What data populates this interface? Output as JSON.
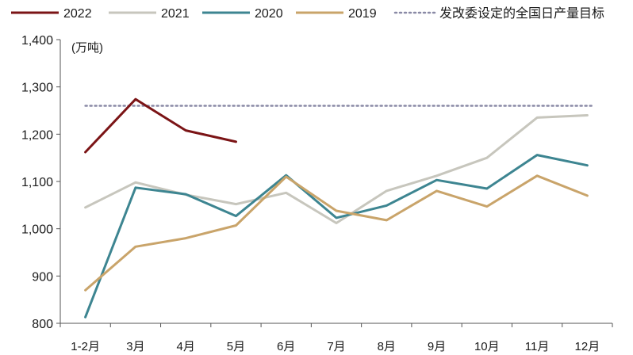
{
  "chart_data": {
    "type": "line",
    "unit_label": "(万吨)",
    "categories": [
      "1-2月",
      "3月",
      "4月",
      "5月",
      "6月",
      "7月",
      "8月",
      "9月",
      "10月",
      "11月",
      "12月"
    ],
    "ylim": [
      800,
      1400
    ],
    "yticks": [
      800,
      900,
      1000,
      1100,
      1200,
      1300,
      1400
    ],
    "ytick_labels": [
      "800",
      "900",
      "1,000",
      "1,100",
      "1,200",
      "1,300",
      "1,400"
    ],
    "series": [
      {
        "name": "2022",
        "color": "#7b1416",
        "values": [
          1162,
          1274,
          1208,
          1184,
          null,
          null,
          null,
          null,
          null,
          null,
          null
        ]
      },
      {
        "name": "2021",
        "color": "#c7c6bd",
        "values": [
          1045,
          1098,
          1072,
          1052,
          1076,
          1012,
          1080,
          1112,
          1150,
          1235,
          1240
        ]
      },
      {
        "name": "2020",
        "color": "#3d8591",
        "values": [
          813,
          1087,
          1073,
          1027,
          1113,
          1023,
          1049,
          1103,
          1085,
          1156,
          1134
        ]
      },
      {
        "name": "2019",
        "color": "#c9a46a",
        "values": [
          870,
          962,
          980,
          1007,
          1110,
          1038,
          1018,
          1080,
          1047,
          1112,
          1070
        ]
      }
    ],
    "reference_line": {
      "name": "发改委设定的全国日产量目标",
      "value": 1260,
      "color": "#8a8aa6",
      "style": "dotted"
    },
    "legend_position": "top",
    "grid": false
  }
}
